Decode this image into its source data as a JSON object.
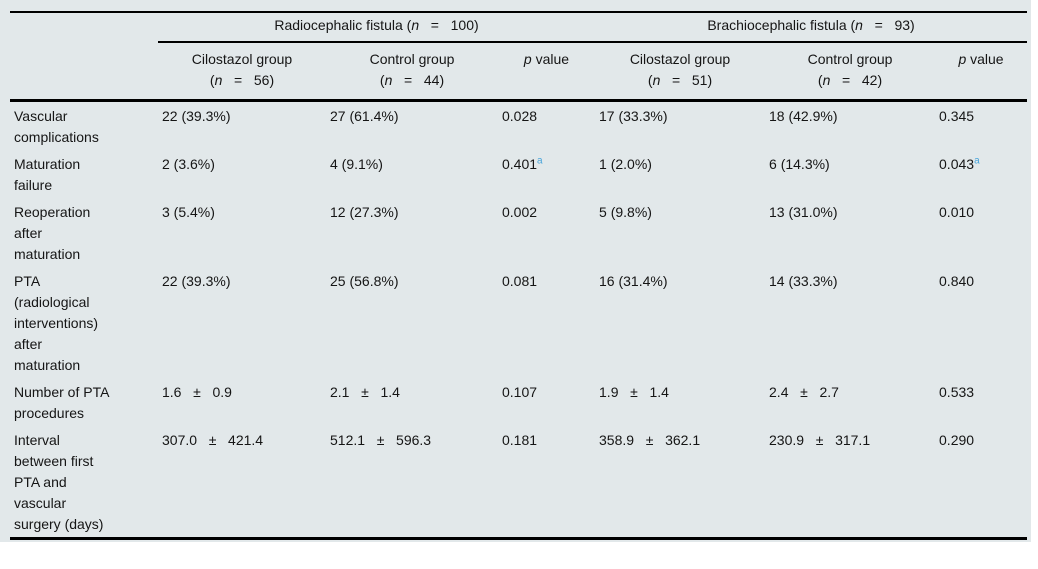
{
  "colors": {
    "table_background": "#e2e8ea",
    "rule": "#000000",
    "text": "#151515",
    "footnote_marker": "#4aa5da"
  },
  "table": {
    "groups": [
      {
        "label": "Radiocephalic fistula (n   =   100)"
      },
      {
        "label": "Brachiocephalic fistula (n   =   93)"
      }
    ],
    "columns": [
      {
        "line1": "Cilostazol group",
        "line2": "(n   =   56)"
      },
      {
        "line1": "Control group",
        "line2": "(n   =   44)"
      },
      {
        "line1": "p value",
        "line2": ""
      },
      {
        "line1": "Cilostazol group",
        "line2": "(n   =   51)"
      },
      {
        "line1": "Control group",
        "line2": "(n   =   42)"
      },
      {
        "line1": "p value",
        "line2": ""
      }
    ],
    "rows": [
      {
        "label": "Vascular complications",
        "cells": [
          {
            "text": "22 (39.3%)"
          },
          {
            "text": "27 (61.4%)"
          },
          {
            "text": "0.028"
          },
          {
            "text": "17 (33.3%)"
          },
          {
            "text": "18 (42.9%)"
          },
          {
            "text": "0.345"
          }
        ]
      },
      {
        "label": "Maturation failure",
        "cells": [
          {
            "text": "2 (3.6%)"
          },
          {
            "text": "4 (9.1%)"
          },
          {
            "text": "0.401",
            "sup": "a"
          },
          {
            "text": "1 (2.0%)"
          },
          {
            "text": "6 (14.3%)"
          },
          {
            "text": "0.043",
            "sup": "a"
          }
        ]
      },
      {
        "label": "Reoperation after maturation",
        "cells": [
          {
            "text": "3 (5.4%)"
          },
          {
            "text": "12 (27.3%)"
          },
          {
            "text": "0.002"
          },
          {
            "text": "5 (9.8%)"
          },
          {
            "text": "13 (31.0%)"
          },
          {
            "text": "0.010"
          }
        ]
      },
      {
        "label": "PTA (radiological interventions) after maturation",
        "cells": [
          {
            "text": "22 (39.3%)"
          },
          {
            "text": "25 (56.8%)"
          },
          {
            "text": "0.081"
          },
          {
            "text": "16 (31.4%)"
          },
          {
            "text": "14 (33.3%)"
          },
          {
            "text": "0.840"
          }
        ]
      },
      {
        "label": "Number of PTA procedures",
        "cells": [
          {
            "text": "1.6   ±   0.9"
          },
          {
            "text": "2.1   ±   1.4"
          },
          {
            "text": "0.107"
          },
          {
            "text": "1.9   ±   1.4"
          },
          {
            "text": "2.4   ±   2.7"
          },
          {
            "text": "0.533"
          }
        ]
      },
      {
        "label": "Interval between first PTA and vascular surgery (days)",
        "cells": [
          {
            "text": "307.0   ±   421.4"
          },
          {
            "text": "512.1   ±   596.3"
          },
          {
            "text": "0.181"
          },
          {
            "text": "358.9   ±   362.1"
          },
          {
            "text": "230.9   ±   317.1"
          },
          {
            "text": "0.290"
          }
        ]
      }
    ]
  }
}
